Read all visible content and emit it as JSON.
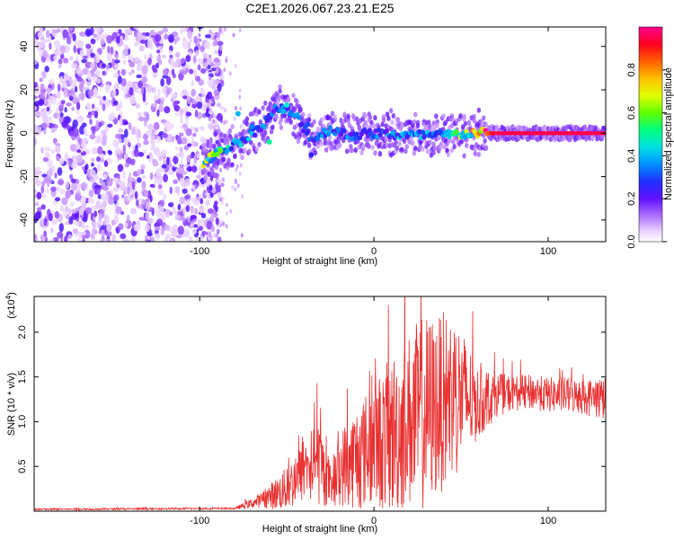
{
  "figure_title": "C2E1.2026.067.23.21.E25",
  "chart_data": [
    {
      "type": "heatmap",
      "title": "C2E1.2026.067.23.21.E25",
      "xlabel": "Height of straight line (km)",
      "ylabel": "Frequency (Hz)",
      "xlim": [
        -195,
        133
      ],
      "ylim": [
        -50,
        49
      ],
      "xticks": [
        -100,
        0,
        100
      ],
      "xtick_labels": [
        "-100",
        "0",
        "100"
      ],
      "yticks": [
        -40,
        -20,
        0,
        20,
        40
      ],
      "ytick_labels": [
        "-40",
        "-20",
        "0",
        "20",
        "40"
      ],
      "colorbar": {
        "label": "Normalized spectral amplitude",
        "range": [
          0,
          1
        ],
        "ticks": [
          0.0,
          0.2,
          0.4,
          0.6,
          0.8
        ],
        "tick_labels": [
          "0.0",
          "0.2",
          "0.4",
          "0.6",
          "0.8"
        ],
        "colors": [
          "#ffffff",
          "#d0b0ff",
          "#8a2be2",
          "#3010ff",
          "#0080ff",
          "#00e0ff",
          "#00ff80",
          "#80ff00",
          "#ffff00",
          "#ff8000",
          "#ff0000",
          "#ff0080"
        ]
      },
      "ridge": [
        {
          "x": -95,
          "y": -12,
          "amp": 0.55
        },
        {
          "x": -85,
          "y": -7,
          "amp": 0.45
        },
        {
          "x": -75,
          "y": -3,
          "amp": 0.35
        },
        {
          "x": -65,
          "y": 3,
          "amp": 0.3
        },
        {
          "x": -55,
          "y": 12,
          "amp": 0.3
        },
        {
          "x": -45,
          "y": 8,
          "amp": 0.3
        },
        {
          "x": -35,
          "y": -3,
          "amp": 0.25
        },
        {
          "x": -25,
          "y": 2,
          "amp": 0.35
        },
        {
          "x": -15,
          "y": -1,
          "amp": 0.3
        },
        {
          "x": 0,
          "y": 0,
          "amp": 0.3
        },
        {
          "x": 20,
          "y": -1,
          "amp": 0.35
        },
        {
          "x": 40,
          "y": -1,
          "amp": 0.4
        },
        {
          "x": 55,
          "y": 0,
          "amp": 0.6
        },
        {
          "x": 70,
          "y": 0,
          "amp": 0.95
        },
        {
          "x": 100,
          "y": 0,
          "amp": 0.95
        },
        {
          "x": 130,
          "y": 0,
          "amp": 0.95
        }
      ],
      "noise_region_x": [
        -195,
        -95
      ]
    },
    {
      "type": "line",
      "xlabel": "Height of straight line (km)",
      "ylabel": "SNR (10 * v/v)",
      "y_multiplier": "(x10^4)",
      "xlim": [
        -195,
        133
      ],
      "ylim": [
        0,
        2.4
      ],
      "xticks": [
        -100,
        0,
        100
      ],
      "xtick_labels": [
        "-100",
        "0",
        "100"
      ],
      "yticks": [
        0.5,
        1.0,
        1.5,
        2.0
      ],
      "ytick_labels": [
        "0.5",
        "1.0",
        "1.5",
        "2.0"
      ],
      "color": "#e83030",
      "envelope": {
        "x": [
          -195,
          -80,
          -65,
          -50,
          -40,
          -32,
          -25,
          -18,
          -10,
          0,
          10,
          20,
          28,
          38,
          45,
          55,
          60,
          70,
          80,
          90,
          100,
          110,
          120,
          133
        ],
        "center": [
          0.02,
          0.03,
          0.12,
          0.25,
          0.45,
          0.55,
          0.3,
          0.5,
          0.6,
          0.75,
          0.85,
          1.0,
          1.1,
          1.2,
          1.3,
          1.25,
          1.2,
          1.3,
          1.32,
          1.33,
          1.3,
          1.3,
          1.28,
          1.25
        ],
        "spread": [
          0.01,
          0.01,
          0.08,
          0.25,
          0.35,
          0.5,
          0.25,
          0.45,
          0.6,
          0.7,
          0.9,
          1.0,
          1.1,
          1.0,
          1.0,
          0.6,
          0.4,
          0.25,
          0.2,
          0.2,
          0.2,
          0.2,
          0.2,
          0.25
        ]
      }
    }
  ]
}
